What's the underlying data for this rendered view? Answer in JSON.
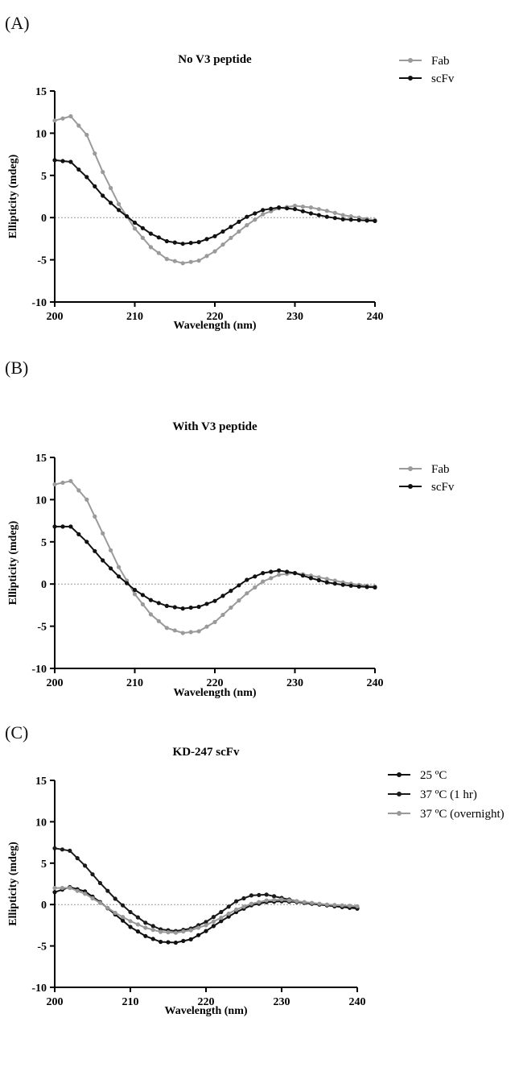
{
  "panels": [
    {
      "label": "(A)",
      "title": "No V3 peptide",
      "xlabel": "Wavelength (nm)",
      "ylabel": "Ellipticity (mdeg)",
      "xticks": [
        "200",
        "210",
        "220",
        "230",
        "240"
      ],
      "yticks": [
        "15",
        "10",
        "5",
        "0",
        "-5",
        "-10"
      ],
      "legend": [
        "Fab",
        "scFv"
      ]
    },
    {
      "label": "(B)",
      "title": "With V3 peptide",
      "xlabel": "Wavelength (nm)",
      "ylabel": "Ellipticity (mdeg)",
      "xticks": [
        "200",
        "210",
        "220",
        "230",
        "240"
      ],
      "yticks": [
        "15",
        "10",
        "5",
        "0",
        "-5",
        "-10"
      ],
      "legend": [
        "Fab",
        "scFv"
      ]
    },
    {
      "label": "(C)",
      "title": "KD-247 scFv",
      "xlabel": "Wavelength (nm)",
      "ylabel": "Ellipticity (mdeg)",
      "xticks": [
        "200",
        "210",
        "220",
        "230",
        "240"
      ],
      "yticks": [
        "15",
        "10",
        "5",
        "0",
        "-5",
        "-10"
      ],
      "legend": [
        "25 ºC",
        "37 ºC (1 hr)",
        "37 ºC (overnight)"
      ]
    }
  ],
  "chart_data": [
    {
      "type": "line",
      "title": "No V3 peptide",
      "xlabel": "Wavelength (nm)",
      "ylabel": "Ellipticity (mdeg)",
      "xlim": [
        200,
        240
      ],
      "ylim": [
        -10,
        15
      ],
      "x": [
        200,
        202,
        204,
        206,
        208,
        210,
        212,
        214,
        216,
        218,
        220,
        222,
        224,
        226,
        228,
        230,
        232,
        234,
        236,
        238,
        240
      ],
      "series": [
        {
          "name": "Fab",
          "color": "#9a9a9a",
          "values": [
            11.5,
            12.0,
            9.8,
            5.4,
            1.6,
            -1.3,
            -3.5,
            -4.9,
            -5.4,
            -5.1,
            -4.0,
            -2.4,
            -0.9,
            0.4,
            1.1,
            1.4,
            1.2,
            0.8,
            0.3,
            0.0,
            -0.3
          ]
        },
        {
          "name": "scFv",
          "color": "#111111",
          "values": [
            6.8,
            6.6,
            4.8,
            2.6,
            0.9,
            -0.6,
            -1.9,
            -2.8,
            -3.1,
            -2.9,
            -2.2,
            -1.1,
            0.1,
            0.9,
            1.2,
            1.0,
            0.5,
            0.1,
            -0.2,
            -0.3,
            -0.4
          ]
        }
      ]
    },
    {
      "type": "line",
      "title": "With V3 peptide",
      "xlabel": "Wavelength (nm)",
      "ylabel": "Ellipticity (mdeg)",
      "xlim": [
        200,
        240
      ],
      "ylim": [
        -10,
        15
      ],
      "x": [
        200,
        202,
        204,
        206,
        208,
        210,
        212,
        214,
        216,
        218,
        220,
        222,
        224,
        226,
        228,
        230,
        232,
        234,
        236,
        238,
        240
      ],
      "series": [
        {
          "name": "Fab",
          "color": "#9a9a9a",
          "values": [
            11.8,
            12.2,
            10.0,
            6.0,
            2.0,
            -1.2,
            -3.6,
            -5.2,
            -5.8,
            -5.6,
            -4.5,
            -2.8,
            -1.1,
            0.3,
            1.1,
            1.3,
            1.0,
            0.6,
            0.2,
            -0.1,
            -0.3
          ]
        },
        {
          "name": "scFv",
          "color": "#111111",
          "values": [
            6.8,
            6.8,
            5.0,
            2.8,
            0.9,
            -0.7,
            -1.9,
            -2.6,
            -2.9,
            -2.7,
            -2.0,
            -0.8,
            0.5,
            1.3,
            1.6,
            1.3,
            0.7,
            0.2,
            -0.1,
            -0.3,
            -0.4
          ]
        }
      ]
    },
    {
      "type": "line",
      "title": "KD-247 scFv",
      "xlabel": "Wavelength (nm)",
      "ylabel": "Ellipticity (mdeg)",
      "xlim": [
        200,
        240
      ],
      "ylim": [
        -10,
        15
      ],
      "x": [
        200,
        202,
        204,
        206,
        208,
        210,
        212,
        214,
        216,
        218,
        220,
        222,
        224,
        226,
        228,
        230,
        232,
        234,
        236,
        238,
        240
      ],
      "series": [
        {
          "name": "25 ºC",
          "color": "#111111",
          "values": [
            1.5,
            2.1,
            1.6,
            0.3,
            -1.2,
            -2.7,
            -3.8,
            -4.5,
            -4.6,
            -4.2,
            -3.2,
            -2.0,
            -0.9,
            -0.1,
            0.3,
            0.4,
            0.3,
            0.1,
            -0.1,
            -0.3,
            -0.5
          ]
        },
        {
          "name": "37 ºC (1 hr)",
          "color": "#1a1a1a",
          "values": [
            6.8,
            6.5,
            4.7,
            2.6,
            0.7,
            -0.9,
            -2.2,
            -3.0,
            -3.2,
            -2.9,
            -2.1,
            -0.9,
            0.4,
            1.1,
            1.2,
            0.8,
            0.4,
            0.1,
            -0.1,
            -0.3,
            -0.4
          ]
        },
        {
          "name": "37 ºC (overnight)",
          "color": "#999999",
          "values": [
            2.0,
            2.0,
            1.3,
            0.2,
            -1.0,
            -2.0,
            -2.8,
            -3.3,
            -3.4,
            -3.1,
            -2.5,
            -1.6,
            -0.6,
            0.1,
            0.5,
            0.6,
            0.4,
            0.2,
            0.0,
            -0.1,
            -0.2
          ]
        }
      ]
    }
  ]
}
